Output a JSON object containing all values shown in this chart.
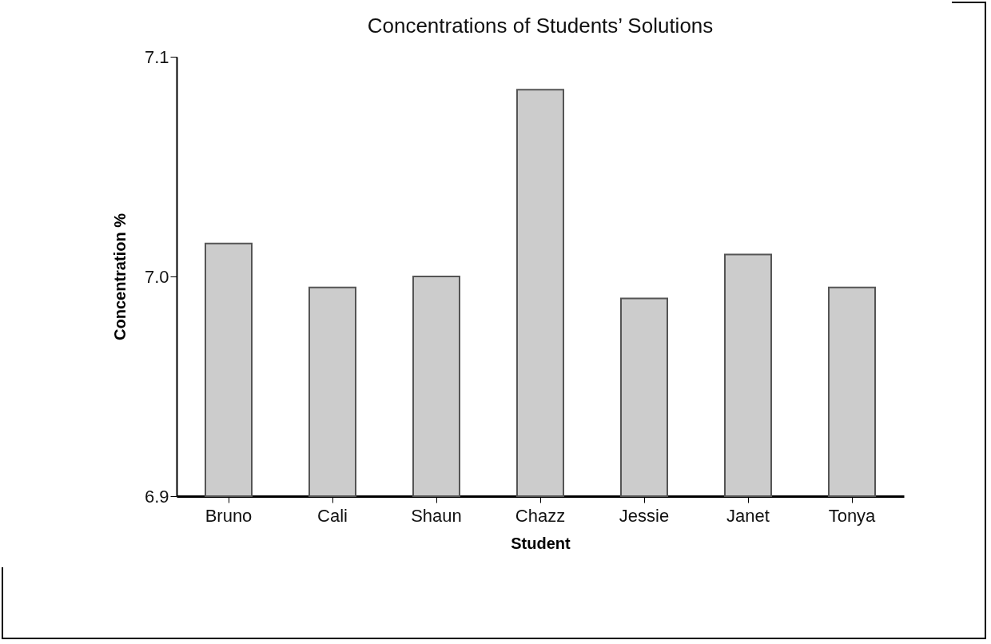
{
  "chart_data": {
    "type": "bar",
    "title": "Concentrations of Students’ Solutions",
    "xlabel": "Student",
    "ylabel": "Concentration %",
    "categories": [
      "Bruno",
      "Cali",
      "Shaun",
      "Chazz",
      "Jessie",
      "Janet",
      "Tonya"
    ],
    "values": [
      7.015,
      6.995,
      7.0,
      7.085,
      6.99,
      7.01,
      6.995
    ],
    "color": "#cccccc",
    "ylim": [
      6.9,
      7.1
    ],
    "yticks": [
      6.9,
      {
        "value": 7.0,
        "label": "7.0"
      },
      7.1
    ],
    "grid": false
  }
}
